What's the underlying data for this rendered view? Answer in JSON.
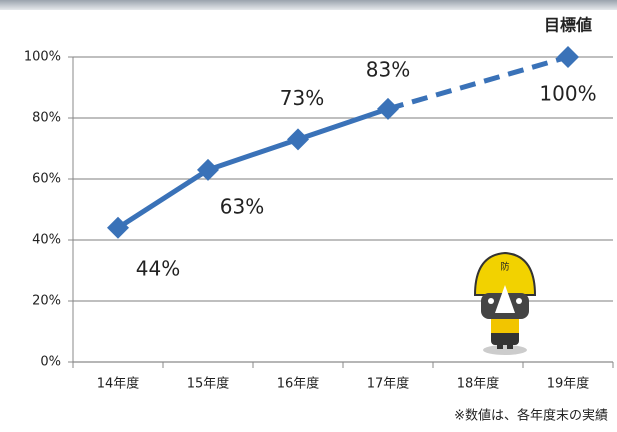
{
  "chart_data": {
    "type": "line",
    "annotation": "目標値",
    "footnote": "※数値は、各年度末の実績",
    "categories": [
      "14年度",
      "15年度",
      "16年度",
      "17年度",
      "18年度",
      "19年度"
    ],
    "series": [
      {
        "color": "#3a72b8",
        "values": [
          44,
          63,
          73,
          83,
          null,
          100
        ],
        "value_labels": [
          "44%",
          "63%",
          "73%",
          "83%",
          null,
          "100%"
        ]
      }
    ],
    "gap_style": "dashed",
    "ylim": [
      0,
      100
    ],
    "yticks": [
      {
        "value": 0,
        "label": "0%"
      },
      {
        "value": 20,
        "label": "20%"
      },
      {
        "value": 40,
        "label": "40%"
      },
      {
        "value": 60,
        "label": "60%"
      },
      {
        "value": 80,
        "label": "80%"
      },
      {
        "value": 100,
        "label": "100%"
      }
    ],
    "grid": true
  }
}
